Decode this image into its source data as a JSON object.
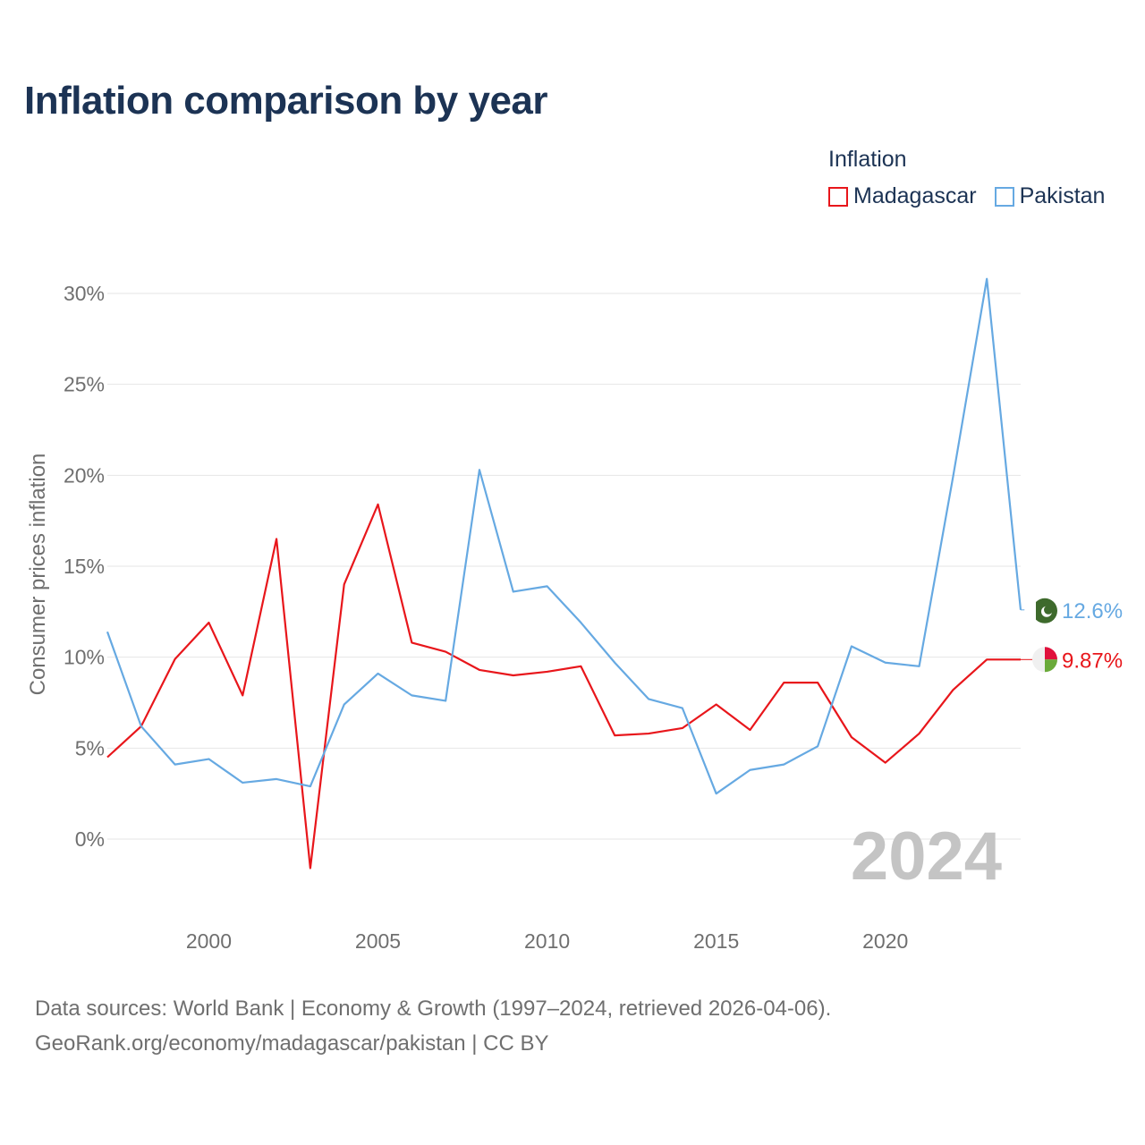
{
  "title": "Inflation comparison by year",
  "legend": {
    "title": "Inflation",
    "items": [
      {
        "label": "Madagascar",
        "color": "#e8161b"
      },
      {
        "label": "Pakistan",
        "color": "#66a9e2"
      }
    ]
  },
  "year_watermark": "2024",
  "source": {
    "line1": "Data sources: World Bank | Economy & Growth (1997–2024, retrieved 2026-04-06).",
    "line2": "GeoRank.org/economy/madagascar/pakistan | CC BY"
  },
  "chart_data": {
    "type": "line",
    "title": "Inflation comparison by year",
    "xlabel": "",
    "ylabel": "Consumer prices inflation",
    "xlim": [
      1997,
      2024
    ],
    "ylim": [
      -3.5,
      31
    ],
    "x_ticks": [
      2000,
      2005,
      2010,
      2015,
      2020
    ],
    "y_ticks": [
      0,
      5,
      10,
      15,
      20,
      25,
      30
    ],
    "y_tick_labels": [
      "0%",
      "5%",
      "10%",
      "15%",
      "20%",
      "25%",
      "30%"
    ],
    "grid": true,
    "legend_position": "top-right",
    "x": [
      1997,
      1998,
      1999,
      2000,
      2001,
      2002,
      2003,
      2004,
      2005,
      2006,
      2007,
      2008,
      2009,
      2010,
      2011,
      2012,
      2013,
      2014,
      2015,
      2016,
      2017,
      2018,
      2019,
      2020,
      2021,
      2022,
      2023,
      2024
    ],
    "series": [
      {
        "name": "Madagascar",
        "color": "#e8161b",
        "end_label": "9.87%",
        "values": [
          4.5,
          6.2,
          9.9,
          11.9,
          7.9,
          16.5,
          -1.6,
          14.0,
          18.4,
          10.8,
          10.3,
          9.3,
          9.0,
          9.2,
          9.5,
          5.7,
          5.8,
          6.1,
          7.4,
          6.0,
          8.6,
          8.6,
          5.6,
          4.2,
          5.8,
          8.2,
          9.87,
          9.87
        ]
      },
      {
        "name": "Pakistan",
        "color": "#66a9e2",
        "end_label": "12.6%",
        "values": [
          11.4,
          6.2,
          4.1,
          4.4,
          3.1,
          3.3,
          2.9,
          7.4,
          9.1,
          7.9,
          7.6,
          20.3,
          13.6,
          13.9,
          11.9,
          9.7,
          7.7,
          7.2,
          2.5,
          3.8,
          4.1,
          5.1,
          10.6,
          9.7,
          9.5,
          19.9,
          30.8,
          12.6
        ]
      }
    ]
  }
}
